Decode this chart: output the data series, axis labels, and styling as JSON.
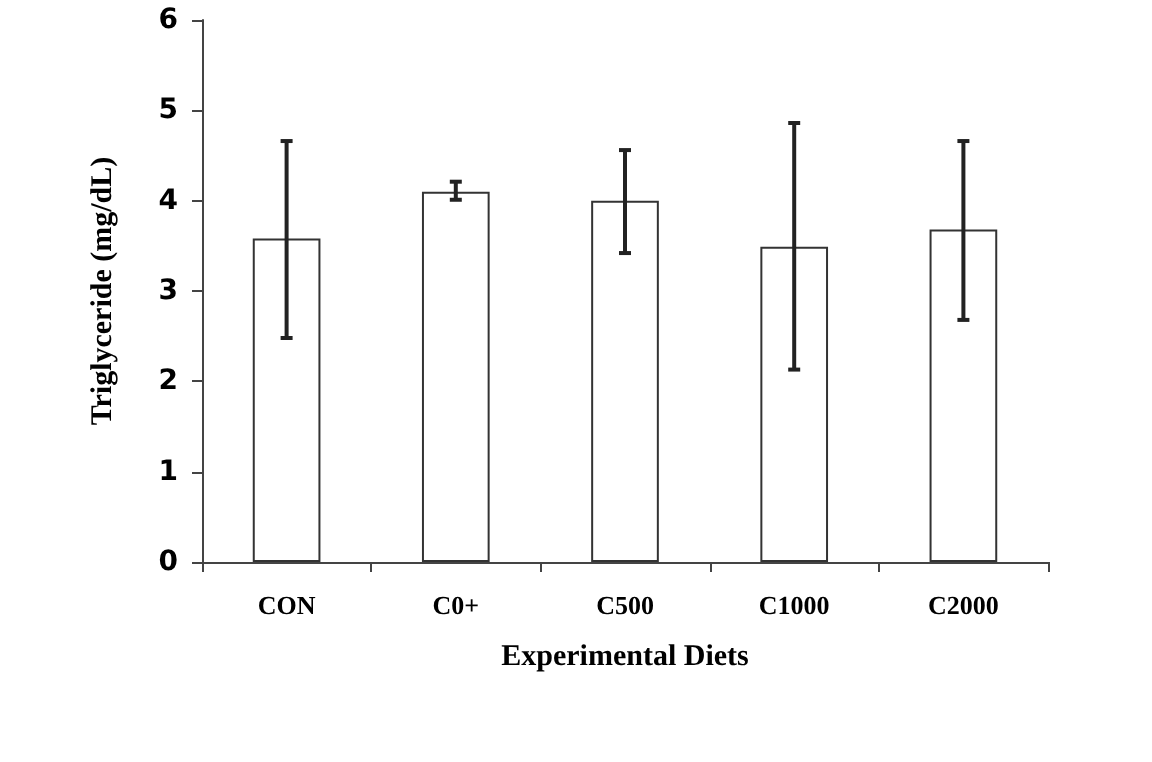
{
  "chart_data": {
    "type": "bar",
    "xlabel": "Experimental Diets",
    "ylabel": "Triglyceride (mg/dL)",
    "categories": [
      "CON",
      "C0+",
      "C500",
      "C1000",
      "C2000"
    ],
    "values": [
      3.58,
      4.1,
      4.0,
      3.49,
      3.68
    ],
    "errors": [
      [
        2.48,
        4.66
      ],
      [
        4.01,
        4.21
      ],
      [
        3.42,
        4.56
      ],
      [
        2.13,
        4.86
      ],
      [
        2.68,
        4.66
      ]
    ],
    "color": "#ffffff",
    "ylim": [
      0,
      6
    ],
    "yticks": [
      0,
      1,
      2,
      3,
      4,
      5,
      6
    ],
    "grid": false
  }
}
